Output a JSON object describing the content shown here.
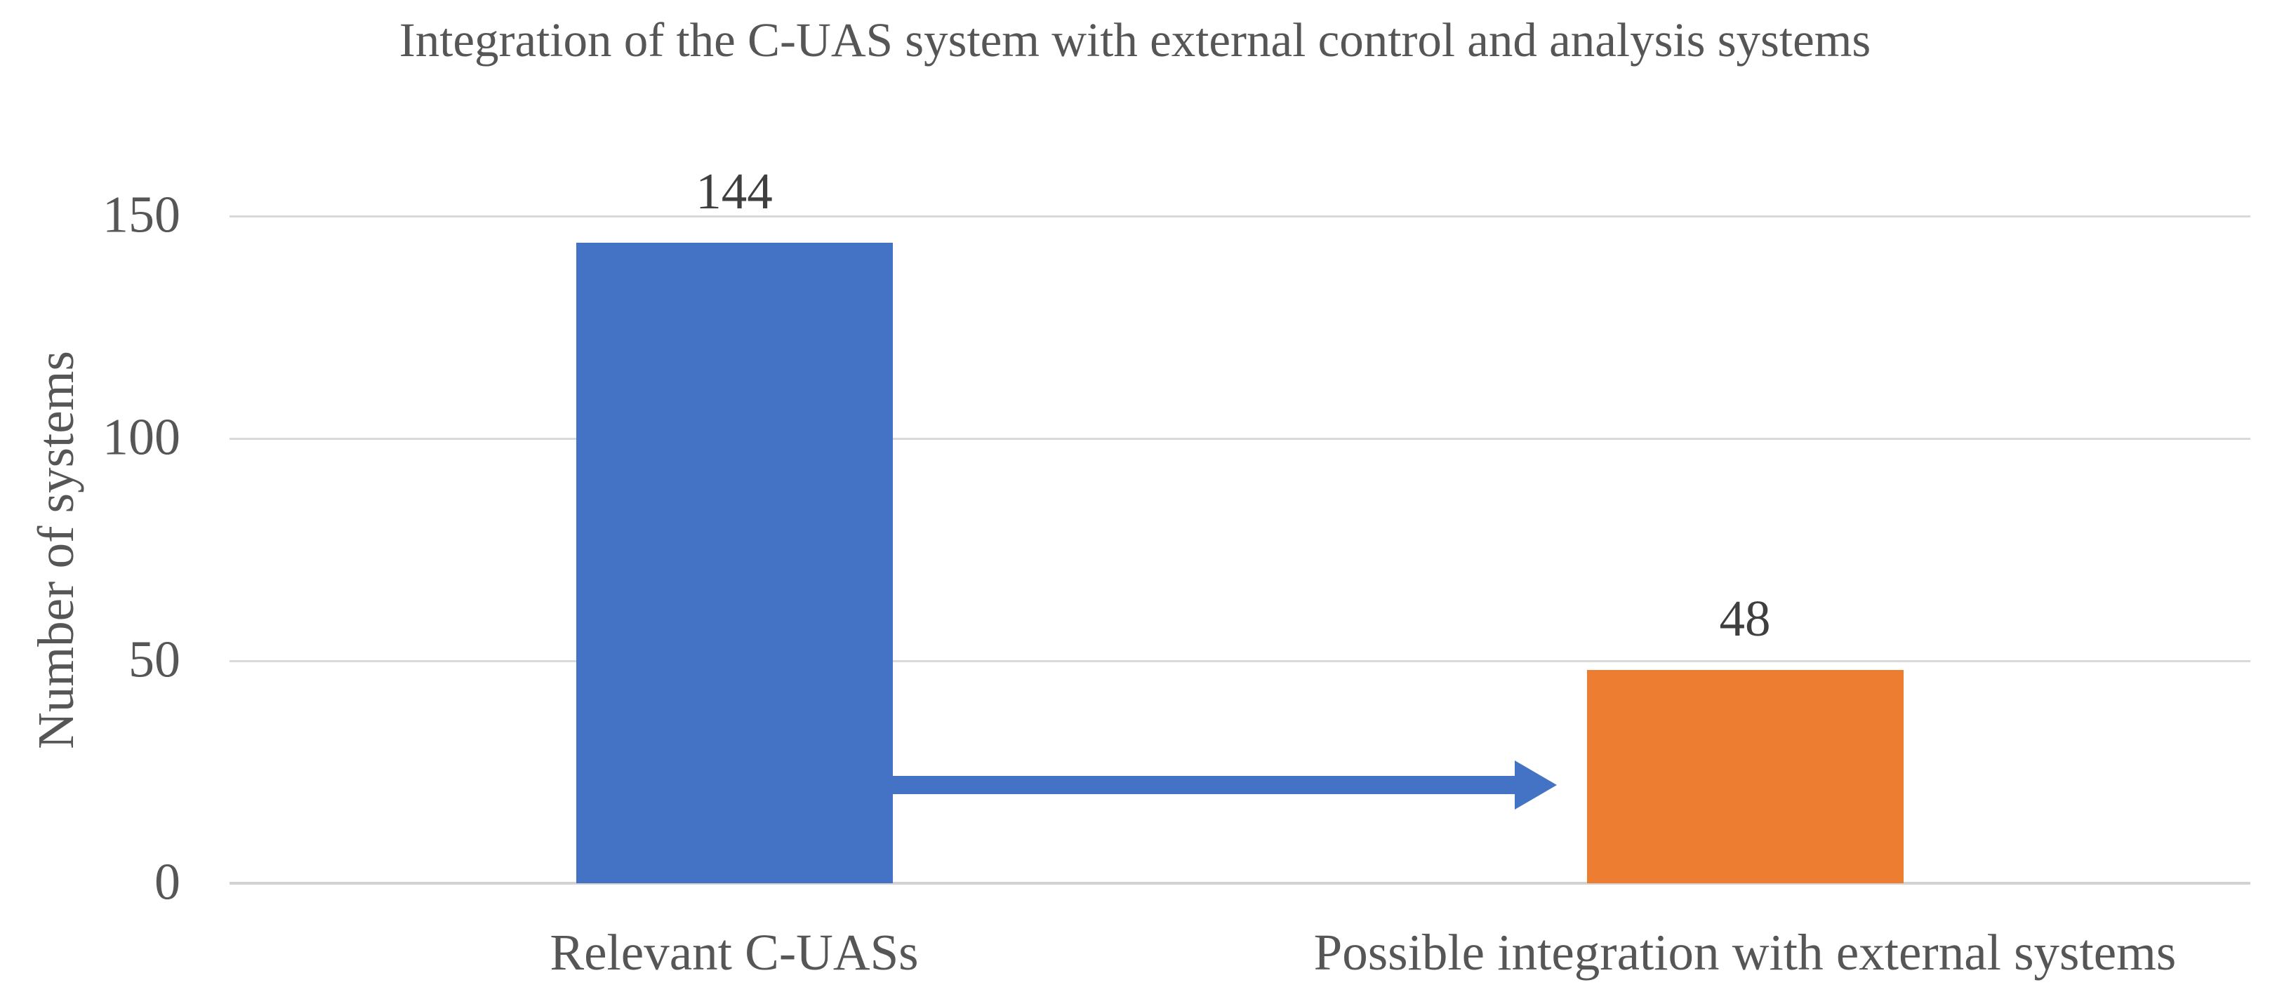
{
  "chart_data": {
    "type": "bar",
    "title": "Integration of the C-UAS system with external control and analysis systems",
    "ylabel": "Number of systems",
    "xlabel": "",
    "categories": [
      "Relevant C-UASs",
      "Possible integration with external systems"
    ],
    "values": [
      144,
      48
    ],
    "data_labels": [
      "144",
      "48"
    ],
    "yticks": [
      0,
      50,
      100,
      150
    ],
    "ylim": [
      0,
      150
    ],
    "grid": true,
    "legend": false,
    "bar_colors": [
      "#4472C4",
      "#ED7D31"
    ],
    "annotation": {
      "type": "arrow",
      "description": "Block arrow pointing from the Relevant C-UASs bar to the Possible integration with external systems bar",
      "color": "#4472C4"
    },
    "colors": {
      "gridline": "#D9D9D9",
      "axis_line": "#D2D2D2",
      "text": "#565656",
      "data_label_text": "#3F3F3F",
      "background": "#FFFFFF"
    }
  }
}
